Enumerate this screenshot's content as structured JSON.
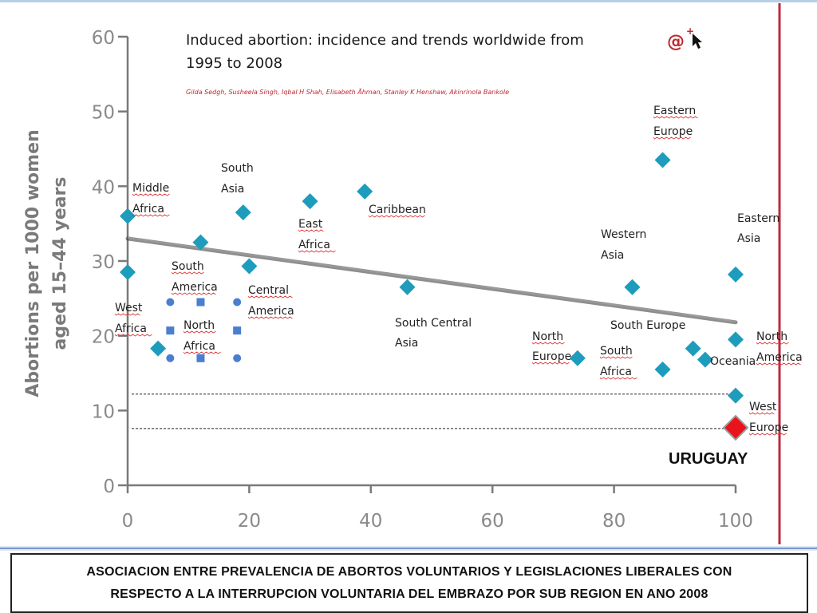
{
  "figure": {
    "title_line1": "Induced abortion: incidence and trends worldwide from",
    "title_line2": "1995 to 2008",
    "authors": "Gilda Sedgh, Susheela Singh, Iqbal H Shah, Elisabeth Åhman, Stanley K Henshaw, Akinrinola Bankole",
    "logo_text": "@",
    "caption_line1": "ASOCIACION ENTRE PREVALENCIA DE ABORTOS VOLUNTARIOS Y LEGISLACIONES LIBERALES CON",
    "caption_line2": "RESPECTO A LA INTERRUPCION VOLUNTARIA DEL EMBRAZO POR SUB REGION EN ANO 2008",
    "highlight_label": "URUGUAY"
  },
  "colors": {
    "diamond": "#1e9cbc",
    "uruguay": "#e8141b",
    "square_marker": "#4a7fd0",
    "circle_marker": "#4a7fd0",
    "trend_line": "#7a7a7a",
    "vertical_line": "#c0283c",
    "axis": "#7a7a7a"
  },
  "chart_data": {
    "type": "scatter",
    "title": "Induced abortion: incidence and trends worldwide from 1995 to 2008",
    "xlabel": "",
    "ylabel": "Abortions per 1000 women aged 15–44 years",
    "xlim": [
      0,
      100
    ],
    "ylim": [
      0,
      60
    ],
    "xticks": [
      0,
      20,
      40,
      60,
      80,
      100
    ],
    "yticks": [
      0,
      10,
      20,
      30,
      40,
      50,
      60
    ],
    "grid": false,
    "series": [
      {
        "marker": "diamond",
        "points": [
          {
            "label": "Middle Africa",
            "x": 0,
            "y": 36
          },
          {
            "label": "",
            "x": 0,
            "y": 28.5
          },
          {
            "label": "West Africa",
            "x": 5,
            "y": 18.3
          },
          {
            "label": "South America",
            "x": 12,
            "y": 32.5
          },
          {
            "label": "South Asia",
            "x": 19,
            "y": 36.5
          },
          {
            "label": "Central America",
            "x": 20,
            "y": 29.3
          },
          {
            "label": "East Africa",
            "x": 30,
            "y": 38
          },
          {
            "label": "Caribbean",
            "x": 39,
            "y": 39.3
          },
          {
            "label": "South Central Asia",
            "x": 46,
            "y": 26.5
          },
          {
            "label": "North Europe",
            "x": 74,
            "y": 17
          },
          {
            "label": "Western Asia",
            "x": 83,
            "y": 26.5
          },
          {
            "label": "Eastern Europe",
            "x": 88,
            "y": 43.5
          },
          {
            "label": "South Africa",
            "x": 88,
            "y": 15.5
          },
          {
            "label": "South Europe",
            "x": 93,
            "y": 18.3
          },
          {
            "label": "Oceania",
            "x": 95,
            "y": 16.8
          },
          {
            "label": "Eastern Asia",
            "x": 100,
            "y": 28.2
          },
          {
            "label": "North America",
            "x": 100,
            "y": 19.5
          },
          {
            "label": "West Europe",
            "x": 100,
            "y": 12
          }
        ]
      },
      {
        "name": "URUGUAY",
        "marker": "red-diamond",
        "points": [
          {
            "label": "URUGUAY",
            "x": 100,
            "y": 7.7
          }
        ]
      }
    ],
    "north_africa": {
      "label": "North Africa",
      "squares": [
        {
          "x": 12,
          "y": 24.5
        },
        {
          "x": 7,
          "y": 20.7
        },
        {
          "x": 18,
          "y": 20.7
        },
        {
          "x": 12,
          "y": 17
        }
      ],
      "circles": [
        {
          "x": 7,
          "y": 24.5
        },
        {
          "x": 18,
          "y": 24.5
        },
        {
          "x": 7,
          "y": 17
        },
        {
          "x": 18,
          "y": 17
        }
      ]
    },
    "trend_line": {
      "x": [
        0,
        100
      ],
      "y": [
        33,
        21.8
      ]
    },
    "reference_lines": [
      12.2,
      7.6
    ],
    "legend": "none"
  }
}
